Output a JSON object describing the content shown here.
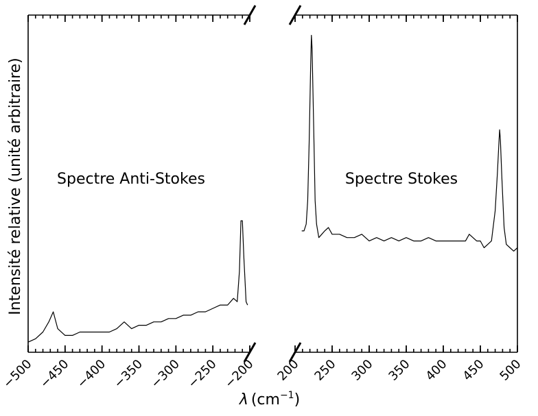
{
  "chart_data": {
    "type": "line",
    "ylabel": "Intensité relative (unité arbitraire)",
    "xlabel": "λ (cm⁻¹)",
    "xlabel_symbol": "λ",
    "xlabel_unit": "(cm",
    "xlabel_sup": "−1",
    "xlabel_close": ")",
    "yticks_shown": false,
    "broken_axis": true,
    "grid": false,
    "panels": [
      {
        "id": "anti-stokes",
        "annotation": "Spectre Anti-Stokes",
        "xlim": [
          -500,
          -200
        ],
        "ylim": [
          0,
          1
        ],
        "ticks": [
          -500,
          -450,
          -400,
          -350,
          -300,
          -250,
          -200
        ],
        "tick_labels": [
          "−500",
          "−450",
          "−400",
          "−350",
          "−300",
          "−250",
          "−200"
        ],
        "minor_step": 10,
        "peaks": [
          {
            "x": -466,
            "y": 0.12
          },
          {
            "x": -212,
            "y": 0.39
          }
        ],
        "x": [
          -500,
          -490,
          -480,
          -472,
          -466,
          -460,
          -450,
          -440,
          -430,
          -420,
          -410,
          -400,
          -390,
          -380,
          -370,
          -360,
          -350,
          -340,
          -330,
          -320,
          -310,
          -300,
          -290,
          -280,
          -270,
          -260,
          -250,
          -240,
          -230,
          -222,
          -217,
          -214,
          -212,
          -210,
          -208,
          -205,
          -203
        ],
        "y": [
          0.03,
          0.04,
          0.06,
          0.09,
          0.12,
          0.07,
          0.05,
          0.05,
          0.06,
          0.06,
          0.06,
          0.06,
          0.06,
          0.07,
          0.09,
          0.07,
          0.08,
          0.08,
          0.09,
          0.09,
          0.1,
          0.1,
          0.11,
          0.11,
          0.12,
          0.12,
          0.13,
          0.14,
          0.14,
          0.16,
          0.15,
          0.24,
          0.39,
          0.39,
          0.28,
          0.15,
          0.14
        ]
      },
      {
        "id": "stokes",
        "annotation": "Spectre Stokes",
        "xlim": [
          200,
          500
        ],
        "ylim": [
          0,
          1
        ],
        "ticks": [
          200,
          250,
          300,
          350,
          400,
          450,
          500
        ],
        "tick_labels": [
          "200",
          "250",
          "300",
          "350",
          "400",
          "450",
          "500"
        ],
        "minor_step": 10,
        "peaks": [
          {
            "x": 222,
            "y": 0.94
          },
          {
            "x": 476,
            "y": 0.66
          }
        ],
        "x": [
          209,
          212,
          215,
          217,
          219,
          221,
          222,
          223,
          225,
          227,
          229,
          232,
          236,
          240,
          245,
          250,
          260,
          270,
          280,
          290,
          300,
          310,
          320,
          330,
          340,
          350,
          360,
          370,
          380,
          390,
          400,
          410,
          420,
          430,
          435,
          440,
          445,
          450,
          455,
          460,
          465,
          470,
          473,
          475,
          476,
          477,
          479,
          482,
          485,
          490,
          495,
          500
        ],
        "y": [
          0.36,
          0.36,
          0.38,
          0.45,
          0.62,
          0.85,
          0.94,
          0.9,
          0.68,
          0.45,
          0.38,
          0.34,
          0.35,
          0.36,
          0.37,
          0.35,
          0.35,
          0.34,
          0.34,
          0.35,
          0.33,
          0.34,
          0.33,
          0.34,
          0.33,
          0.34,
          0.33,
          0.33,
          0.34,
          0.33,
          0.33,
          0.33,
          0.33,
          0.33,
          0.35,
          0.34,
          0.33,
          0.33,
          0.31,
          0.32,
          0.33,
          0.42,
          0.53,
          0.62,
          0.66,
          0.63,
          0.52,
          0.37,
          0.32,
          0.31,
          0.3,
          0.31
        ]
      }
    ]
  }
}
